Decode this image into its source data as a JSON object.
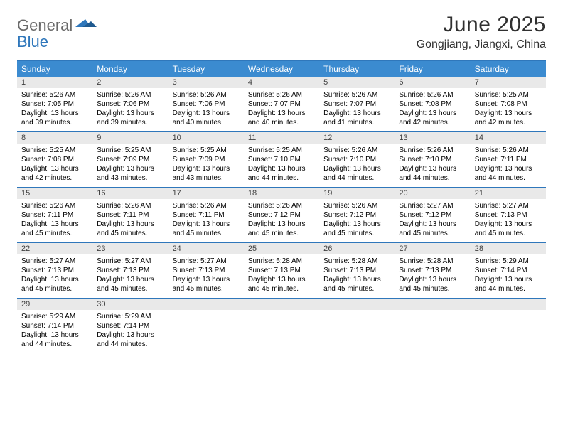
{
  "logo": {
    "word1": "General",
    "word2": "Blue"
  },
  "title": "June 2025",
  "location": "Gongjiang, Jiangxi, China",
  "colors": {
    "header_band": "#3b8bd0",
    "rule": "#2f77bb",
    "daynum_band": "#e9e9e9",
    "logo_gray": "#6a6a6a",
    "logo_blue": "#2f77bb",
    "text": "#000000",
    "title_text": "#303030"
  },
  "weekdays": [
    "Sunday",
    "Monday",
    "Tuesday",
    "Wednesday",
    "Thursday",
    "Friday",
    "Saturday"
  ],
  "weeks": [
    [
      {
        "n": "1",
        "sr": "Sunrise: 5:26 AM",
        "ss": "Sunset: 7:05 PM",
        "d1": "Daylight: 13 hours",
        "d2": "and 39 minutes."
      },
      {
        "n": "2",
        "sr": "Sunrise: 5:26 AM",
        "ss": "Sunset: 7:06 PM",
        "d1": "Daylight: 13 hours",
        "d2": "and 39 minutes."
      },
      {
        "n": "3",
        "sr": "Sunrise: 5:26 AM",
        "ss": "Sunset: 7:06 PM",
        "d1": "Daylight: 13 hours",
        "d2": "and 40 minutes."
      },
      {
        "n": "4",
        "sr": "Sunrise: 5:26 AM",
        "ss": "Sunset: 7:07 PM",
        "d1": "Daylight: 13 hours",
        "d2": "and 40 minutes."
      },
      {
        "n": "5",
        "sr": "Sunrise: 5:26 AM",
        "ss": "Sunset: 7:07 PM",
        "d1": "Daylight: 13 hours",
        "d2": "and 41 minutes."
      },
      {
        "n": "6",
        "sr": "Sunrise: 5:26 AM",
        "ss": "Sunset: 7:08 PM",
        "d1": "Daylight: 13 hours",
        "d2": "and 42 minutes."
      },
      {
        "n": "7",
        "sr": "Sunrise: 5:25 AM",
        "ss": "Sunset: 7:08 PM",
        "d1": "Daylight: 13 hours",
        "d2": "and 42 minutes."
      }
    ],
    [
      {
        "n": "8",
        "sr": "Sunrise: 5:25 AM",
        "ss": "Sunset: 7:08 PM",
        "d1": "Daylight: 13 hours",
        "d2": "and 42 minutes."
      },
      {
        "n": "9",
        "sr": "Sunrise: 5:25 AM",
        "ss": "Sunset: 7:09 PM",
        "d1": "Daylight: 13 hours",
        "d2": "and 43 minutes."
      },
      {
        "n": "10",
        "sr": "Sunrise: 5:25 AM",
        "ss": "Sunset: 7:09 PM",
        "d1": "Daylight: 13 hours",
        "d2": "and 43 minutes."
      },
      {
        "n": "11",
        "sr": "Sunrise: 5:25 AM",
        "ss": "Sunset: 7:10 PM",
        "d1": "Daylight: 13 hours",
        "d2": "and 44 minutes."
      },
      {
        "n": "12",
        "sr": "Sunrise: 5:26 AM",
        "ss": "Sunset: 7:10 PM",
        "d1": "Daylight: 13 hours",
        "d2": "and 44 minutes."
      },
      {
        "n": "13",
        "sr": "Sunrise: 5:26 AM",
        "ss": "Sunset: 7:10 PM",
        "d1": "Daylight: 13 hours",
        "d2": "and 44 minutes."
      },
      {
        "n": "14",
        "sr": "Sunrise: 5:26 AM",
        "ss": "Sunset: 7:11 PM",
        "d1": "Daylight: 13 hours",
        "d2": "and 44 minutes."
      }
    ],
    [
      {
        "n": "15",
        "sr": "Sunrise: 5:26 AM",
        "ss": "Sunset: 7:11 PM",
        "d1": "Daylight: 13 hours",
        "d2": "and 45 minutes."
      },
      {
        "n": "16",
        "sr": "Sunrise: 5:26 AM",
        "ss": "Sunset: 7:11 PM",
        "d1": "Daylight: 13 hours",
        "d2": "and 45 minutes."
      },
      {
        "n": "17",
        "sr": "Sunrise: 5:26 AM",
        "ss": "Sunset: 7:11 PM",
        "d1": "Daylight: 13 hours",
        "d2": "and 45 minutes."
      },
      {
        "n": "18",
        "sr": "Sunrise: 5:26 AM",
        "ss": "Sunset: 7:12 PM",
        "d1": "Daylight: 13 hours",
        "d2": "and 45 minutes."
      },
      {
        "n": "19",
        "sr": "Sunrise: 5:26 AM",
        "ss": "Sunset: 7:12 PM",
        "d1": "Daylight: 13 hours",
        "d2": "and 45 minutes."
      },
      {
        "n": "20",
        "sr": "Sunrise: 5:27 AM",
        "ss": "Sunset: 7:12 PM",
        "d1": "Daylight: 13 hours",
        "d2": "and 45 minutes."
      },
      {
        "n": "21",
        "sr": "Sunrise: 5:27 AM",
        "ss": "Sunset: 7:13 PM",
        "d1": "Daylight: 13 hours",
        "d2": "and 45 minutes."
      }
    ],
    [
      {
        "n": "22",
        "sr": "Sunrise: 5:27 AM",
        "ss": "Sunset: 7:13 PM",
        "d1": "Daylight: 13 hours",
        "d2": "and 45 minutes."
      },
      {
        "n": "23",
        "sr": "Sunrise: 5:27 AM",
        "ss": "Sunset: 7:13 PM",
        "d1": "Daylight: 13 hours",
        "d2": "and 45 minutes."
      },
      {
        "n": "24",
        "sr": "Sunrise: 5:27 AM",
        "ss": "Sunset: 7:13 PM",
        "d1": "Daylight: 13 hours",
        "d2": "and 45 minutes."
      },
      {
        "n": "25",
        "sr": "Sunrise: 5:28 AM",
        "ss": "Sunset: 7:13 PM",
        "d1": "Daylight: 13 hours",
        "d2": "and 45 minutes."
      },
      {
        "n": "26",
        "sr": "Sunrise: 5:28 AM",
        "ss": "Sunset: 7:13 PM",
        "d1": "Daylight: 13 hours",
        "d2": "and 45 minutes."
      },
      {
        "n": "27",
        "sr": "Sunrise: 5:28 AM",
        "ss": "Sunset: 7:13 PM",
        "d1": "Daylight: 13 hours",
        "d2": "and 45 minutes."
      },
      {
        "n": "28",
        "sr": "Sunrise: 5:29 AM",
        "ss": "Sunset: 7:14 PM",
        "d1": "Daylight: 13 hours",
        "d2": "and 44 minutes."
      }
    ],
    [
      {
        "n": "29",
        "sr": "Sunrise: 5:29 AM",
        "ss": "Sunset: 7:14 PM",
        "d1": "Daylight: 13 hours",
        "d2": "and 44 minutes."
      },
      {
        "n": "30",
        "sr": "Sunrise: 5:29 AM",
        "ss": "Sunset: 7:14 PM",
        "d1": "Daylight: 13 hours",
        "d2": "and 44 minutes."
      },
      null,
      null,
      null,
      null,
      null
    ]
  ]
}
